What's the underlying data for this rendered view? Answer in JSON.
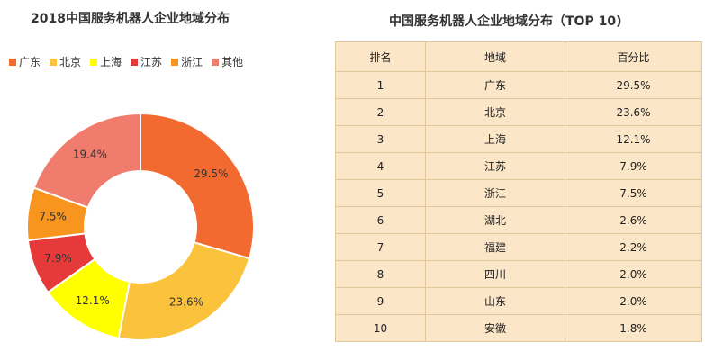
{
  "donut": {
    "title": "2018中国服务机器人企业地域分布"
  },
  "table": {
    "title": "中国服务机器人企业地域分布（TOP 10)",
    "headers": [
      "排名",
      "地域",
      "百分比"
    ],
    "rows": [
      [
        "1",
        "广东",
        "29.5%"
      ],
      [
        "2",
        "北京",
        "23.6%"
      ],
      [
        "3",
        "上海",
        "12.1%"
      ],
      [
        "4",
        "江苏",
        "7.9%"
      ],
      [
        "5",
        "浙江",
        "7.5%"
      ],
      [
        "6",
        "湖北",
        "2.6%"
      ],
      [
        "7",
        "福建",
        "2.2%"
      ],
      [
        "8",
        "四川",
        "2.0%"
      ],
      [
        "9",
        "山东",
        "2.0%"
      ],
      [
        "10",
        "安徽",
        "1.8%"
      ]
    ]
  },
  "chart_data": [
    {
      "type": "pie",
      "subtype": "donut",
      "title": "2018中国服务机器人企业地域分布",
      "categories": [
        "广东",
        "北京",
        "上海",
        "江苏",
        "浙江",
        "其他"
      ],
      "values": [
        29.5,
        23.6,
        12.1,
        7.9,
        7.5,
        19.4
      ],
      "labels": [
        "29.5%",
        "23.6%",
        "12.1%",
        "7.9%",
        "7.5%",
        "19.4%"
      ],
      "colors": [
        "#f26a30",
        "#fbc23c",
        "#ffff00",
        "#e63a3a",
        "#f7951e",
        "#f07c6e"
      ],
      "legend": "top-left"
    },
    {
      "type": "table",
      "title": "中国服务机器人企业地域分布（TOP 10)",
      "columns": [
        "排名",
        "地域",
        "百分比"
      ],
      "categories": [
        "广东",
        "北京",
        "上海",
        "江苏",
        "浙江",
        "湖北",
        "福建",
        "四川",
        "山东",
        "安徽"
      ],
      "values": [
        29.5,
        23.6,
        12.1,
        7.9,
        7.5,
        2.6,
        2.2,
        2.0,
        2.0,
        1.8
      ]
    }
  ]
}
